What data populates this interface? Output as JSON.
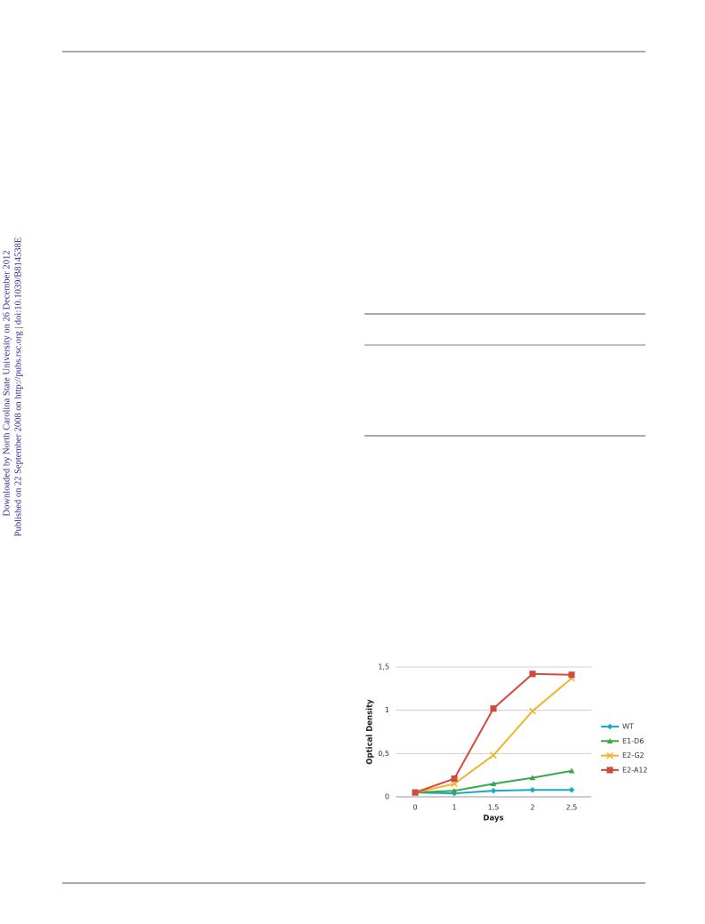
{
  "sidebar": {
    "downloaded": "Downloaded by North Carolina State University on 26 December 2012",
    "published": "Published on 22 September 2008 on http://pubs.rsc.org | doi:10.1039/B814538E"
  },
  "chart_data": {
    "type": "line",
    "x_label": "Days",
    "y_label": "Optical Density",
    "categories": [
      "0",
      "1",
      "1,5",
      "2",
      "2,5"
    ],
    "series": [
      {
        "name": "WT",
        "color": "#1ba8c4",
        "marker": "diamond",
        "values": [
          0.05,
          0.04,
          0.07,
          0.08,
          0.08
        ]
      },
      {
        "name": "E1-D6",
        "color": "#3aa64a",
        "marker": "triangle",
        "values": [
          0.05,
          0.07,
          0.15,
          0.22,
          0.3
        ]
      },
      {
        "name": "E2-G2",
        "color": "#f0b429",
        "marker": "x",
        "values": [
          0.05,
          0.15,
          0.48,
          0.99,
          1.37
        ]
      },
      {
        "name": "E2-A12",
        "color": "#d9463a",
        "marker": "square",
        "values": [
          0.05,
          0.21,
          1.02,
          1.42,
          1.41
        ]
      }
    ],
    "ylim": [
      0,
      1.5
    ],
    "yticks": [
      0,
      {
        "value": 0.5,
        "label": "0,5"
      },
      1,
      {
        "value": 1.5,
        "label": "1,5"
      }
    ],
    "grid": true,
    "legend": "right"
  }
}
